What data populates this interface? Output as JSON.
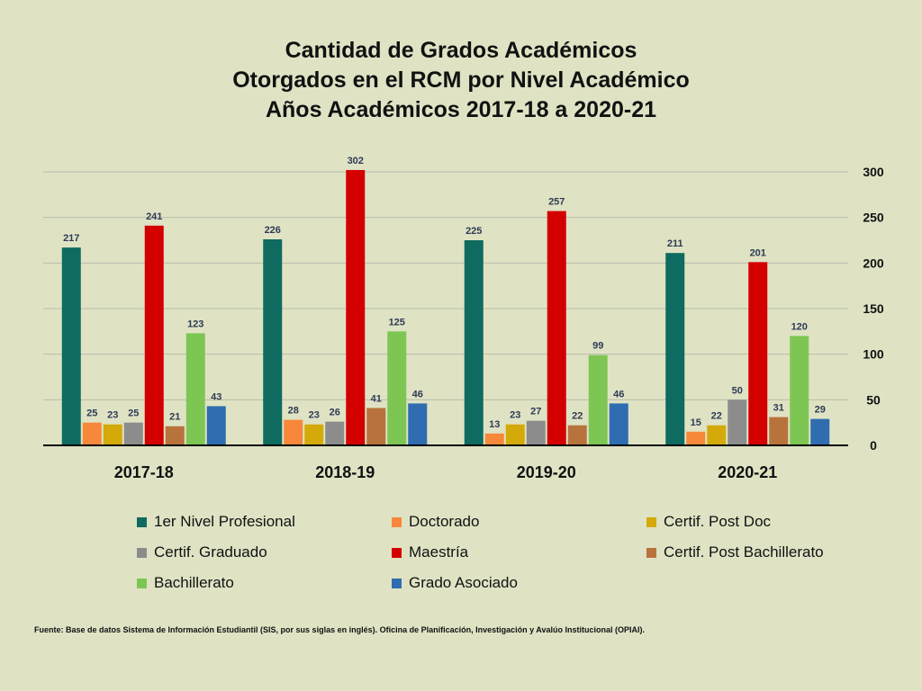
{
  "chart_data": {
    "type": "bar",
    "title_lines": [
      "Cantidad de Grados Académicos",
      "Otorgados en el RCM por Nivel Académico",
      "Años Académicos 2017-18 a 2020-21"
    ],
    "categories": [
      "2017-18",
      "2018-19",
      "2019-20",
      "2020-21"
    ],
    "series": [
      {
        "name": "1er Nivel Profesional",
        "color": "#0f6b5f",
        "values": [
          217,
          226,
          225,
          211
        ]
      },
      {
        "name": "Doctorado",
        "color": "#f7873a",
        "values": [
          25,
          28,
          13,
          15
        ]
      },
      {
        "name": "Certif. Post Doc",
        "color": "#d4aa0a",
        "values": [
          23,
          23,
          23,
          22
        ]
      },
      {
        "name": "Certif. Graduado",
        "color": "#8c8c8c",
        "values": [
          25,
          26,
          27,
          50
        ]
      },
      {
        "name": "Maestría",
        "color": "#d40000",
        "values": [
          241,
          302,
          257,
          201
        ]
      },
      {
        "name": "Certif. Post Bachillerato",
        "color": "#b8733c",
        "values": [
          21,
          41,
          22,
          31
        ]
      },
      {
        "name": "Bachillerato",
        "color": "#7ec653",
        "values": [
          123,
          125,
          99,
          120
        ]
      },
      {
        "name": "Grado Asociado",
        "color": "#2f6db0",
        "values": [
          43,
          46,
          46,
          29
        ]
      }
    ],
    "yticks": [
      "0",
      "50",
      "100",
      "150",
      "200",
      "250",
      "300"
    ],
    "ylim": [
      0,
      300
    ],
    "y_axis_side": "right",
    "grid": true,
    "legend_position": "bottom"
  },
  "source_note": "Fuente: Base de datos  Sistema de Información Estudiantil (SIS, por sus siglas en inglés). Oficina de Planificación, Investigación y Avalúo Institucional (OPIAI)."
}
